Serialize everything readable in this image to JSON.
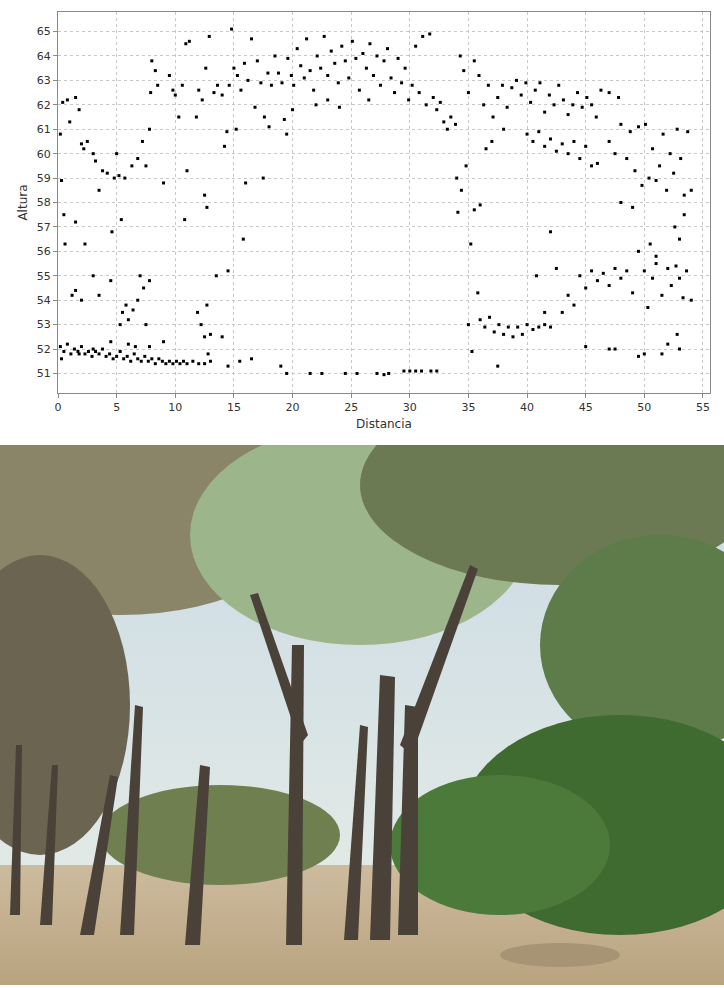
{
  "chart_data": {
    "type": "scatter",
    "x_label": "Distancia",
    "y_label": "Altura",
    "color": "#000000",
    "marker": "square",
    "grid": true,
    "xlim": [
      0,
      55.6
    ],
    "ylim": [
      50.2,
      65.8
    ],
    "xticks": [
      0,
      5,
      10,
      15,
      20,
      25,
      30,
      35,
      40,
      45,
      50,
      55
    ],
    "yticks": [
      51,
      52,
      53,
      54,
      55,
      56,
      57,
      58,
      59,
      60,
      61,
      62,
      63,
      64,
      65
    ],
    "x": [
      0.2,
      0.5,
      0.8,
      1.1,
      1.4,
      1.7,
      2.0,
      2.3,
      2.6,
      2.9,
      3.2,
      3.5,
      3.8,
      4.1,
      4.4,
      4.7,
      5.0,
      5.3,
      5.6,
      5.9,
      6.2,
      6.5,
      6.8,
      7.1,
      7.4,
      7.7,
      8.0,
      8.3,
      8.6,
      8.9,
      9.2,
      9.5,
      9.8,
      10.1,
      10.4,
      10.7,
      11.0,
      11.5,
      12.0,
      12.5,
      13.0,
      14.5,
      15.5,
      16.5,
      19.0,
      19.5,
      21.5,
      22.5,
      24.5,
      25.5,
      27.2,
      27.8,
      28.2,
      29.5,
      30.0,
      30.5,
      31.0,
      31.8,
      32.3,
      0.3,
      1.8,
      3.0,
      6.0,
      6.6,
      4.5,
      7.8,
      9.0,
      12.8,
      0.2,
      0.3,
      0.5,
      0.6,
      0.4,
      0.8,
      1.0,
      1.5,
      1.8,
      2.0,
      2.2,
      2.5,
      3.0,
      3.2,
      3.5,
      3.8,
      4.2,
      4.8,
      5.2,
      5.7,
      5.0,
      1.2,
      1.5,
      2.0,
      3.0,
      3.5,
      4.5,
      5.3,
      5.5,
      5.8,
      6.0,
      6.4,
      6.8,
      7.0,
      7.3,
      7.5,
      7.8,
      6.3,
      6.8,
      7.2,
      7.5,
      7.8,
      7.9,
      8.0,
      8.3,
      8.5,
      9.0,
      9.5,
      9.8,
      10.0,
      10.3,
      10.6,
      10.9,
      11.2,
      11.0,
      10.8,
      11.8,
      12.0,
      12.3,
      12.6,
      12.9,
      11.9,
      12.2,
      12.5,
      12.7,
      13.0,
      13.5,
      14.0,
      14.5,
      12.5,
      12.7,
      15.8,
      1.5,
      2.3,
      4.6,
      5.4,
      13.3,
      13.6,
      14.0,
      14.2,
      14.4,
      14.6,
      14.8,
      15.0,
      15.3,
      15.6,
      15.9,
      16.2,
      16.5,
      16.8,
      17.0,
      17.3,
      17.6,
      17.9,
      18.2,
      18.5,
      18.8,
      19.1,
      19.3,
      19.6,
      19.9,
      20.1,
      20.4,
      20.7,
      21.0,
      21.2,
      21.5,
      21.8,
      22.1,
      22.4,
      22.7,
      23.0,
      23.3,
      23.6,
      23.9,
      24.2,
      24.5,
      24.8,
      25.1,
      25.4,
      25.7,
      26.0,
      26.3,
      26.6,
      26.9,
      27.2,
      27.5,
      27.8,
      28.1,
      28.4,
      28.7,
      29.0,
      29.3,
      29.6,
      29.9,
      30.2,
      30.5,
      30.8,
      31.1,
      31.4,
      31.7,
      32.0,
      32.3,
      32.6,
      32.9,
      33.2,
      33.5,
      16.0,
      17.5,
      18.0,
      19.5,
      22.0,
      24.0,
      26.5,
      15.2,
      20.0,
      23.0,
      33.9,
      34.3,
      34.6,
      35.0,
      35.5,
      35.9,
      36.3,
      36.7,
      37.1,
      37.5,
      37.9,
      38.3,
      38.7,
      39.1,
      39.5,
      39.9,
      40.3,
      40.7,
      41.1,
      41.5,
      41.9,
      42.3,
      42.7,
      43.1,
      43.5,
      43.9,
      44.3,
      44.7,
      45.1,
      45.5,
      45.9,
      46.3,
      47.0,
      47.8,
      40.0,
      40.5,
      41.0,
      41.5,
      42.0,
      42.5,
      43.0,
      43.5,
      44.0,
      44.5,
      45.0,
      45.5,
      46.0,
      37.0,
      38.0,
      36.5,
      47.0,
      47.5,
      48.0,
      48.5,
      48.8,
      49.2,
      49.5,
      49.8,
      50.1,
      50.4,
      50.7,
      51.0,
      51.3,
      51.6,
      51.9,
      52.2,
      52.5,
      52.8,
      53.1,
      53.4,
      53.7,
      54.0,
      52.6,
      53.0,
      53.4,
      48.0,
      49.0,
      50.5,
      51.0,
      34.0,
      34.1,
      34.4,
      34.8,
      35.2,
      35.5,
      36.0,
      35.8,
      35.0,
      35.3,
      36.0,
      36.4,
      36.8,
      37.2,
      37.6,
      38.0,
      38.4,
      38.8,
      39.2,
      39.6,
      40.0,
      40.5,
      41.0,
      41.5,
      42.0,
      37.5,
      41.5,
      40.8,
      42.0,
      42.5,
      43.0,
      43.5,
      44.0,
      44.5,
      45.0,
      45.5,
      46.0,
      46.5,
      47.0,
      47.5,
      48.0,
      48.5,
      49.0,
      49.5,
      50.0,
      50.3,
      50.7,
      51.0,
      51.5,
      52.0,
      52.3,
      52.7,
      53.0,
      53.3,
      53.6,
      54.0,
      45.0,
      47.0,
      47.5,
      49.5,
      50.0,
      51.5,
      53.0,
      52.8,
      52.0
    ],
    "values": [
      52.1,
      51.9,
      52.2,
      51.8,
      52.0,
      51.9,
      52.1,
      51.8,
      51.9,
      51.7,
      51.9,
      51.8,
      52.0,
      51.7,
      51.8,
      51.6,
      51.7,
      51.9,
      51.6,
      51.7,
      51.5,
      51.8,
      51.6,
      51.5,
      51.7,
      51.5,
      51.6,
      51.4,
      51.6,
      51.5,
      51.4,
      51.5,
      51.4,
      51.5,
      51.4,
      51.5,
      51.4,
      51.5,
      51.4,
      51.4,
      51.5,
      51.3,
      51.5,
      51.6,
      51.3,
      51.0,
      51.0,
      51.0,
      51.0,
      51.0,
      51.0,
      50.95,
      51.0,
      51.1,
      51.1,
      51.1,
      51.1,
      51.1,
      51.1,
      51.6,
      51.8,
      52.0,
      52.2,
      52.1,
      52.3,
      52.1,
      52.3,
      51.8,
      60.8,
      58.9,
      57.5,
      56.3,
      62.1,
      62.2,
      61.3,
      62.3,
      61.8,
      60.4,
      60.2,
      60.5,
      60.0,
      59.7,
      58.5,
      59.3,
      59.2,
      59.0,
      59.1,
      59.0,
      60.0,
      54.2,
      54.4,
      54.0,
      55.0,
      54.2,
      54.8,
      53.0,
      53.5,
      53.8,
      53.2,
      53.6,
      54.0,
      55.0,
      54.5,
      53.0,
      54.8,
      59.5,
      59.8,
      60.5,
      59.5,
      61.0,
      62.5,
      63.8,
      63.4,
      62.8,
      58.8,
      63.2,
      62.6,
      62.4,
      61.5,
      62.8,
      64.5,
      64.6,
      59.3,
      57.3,
      61.5,
      62.6,
      62.2,
      63.5,
      64.8,
      53.5,
      53.0,
      52.5,
      53.8,
      52.6,
      55.0,
      52.5,
      55.2,
      58.3,
      57.8,
      56.5,
      57.2,
      56.3,
      56.8,
      57.3,
      62.5,
      62.8,
      62.4,
      60.3,
      60.9,
      62.8,
      65.1,
      63.5,
      63.2,
      62.6,
      63.7,
      63.0,
      64.7,
      61.9,
      63.8,
      62.9,
      61.5,
      63.3,
      62.8,
      64.0,
      63.3,
      62.9,
      61.4,
      63.9,
      63.2,
      62.8,
      64.3,
      63.6,
      63.1,
      64.7,
      63.4,
      62.6,
      64.0,
      63.5,
      64.8,
      63.2,
      64.2,
      63.7,
      62.9,
      64.4,
      63.8,
      63.1,
      64.6,
      63.9,
      62.6,
      64.1,
      63.5,
      64.5,
      63.2,
      64.0,
      62.8,
      63.8,
      64.3,
      63.1,
      62.5,
      63.9,
      62.9,
      63.5,
      62.2,
      62.8,
      64.4,
      62.5,
      64.8,
      62.0,
      64.9,
      62.3,
      61.8,
      62.1,
      61.3,
      61.0,
      61.5,
      58.8,
      59.0,
      61.1,
      60.8,
      62.0,
      61.9,
      62.2,
      61.0,
      61.8,
      62.2,
      61.2,
      64.0,
      63.4,
      62.5,
      63.8,
      63.2,
      62.0,
      62.8,
      61.5,
      62.3,
      62.8,
      61.9,
      62.7,
      63.0,
      62.4,
      62.9,
      62.1,
      62.6,
      62.9,
      61.7,
      62.4,
      62.0,
      62.8,
      62.2,
      61.6,
      62.0,
      62.5,
      61.9,
      62.3,
      62.0,
      61.5,
      62.6,
      62.5,
      62.3,
      60.8,
      60.5,
      60.9,
      60.3,
      60.6,
      60.1,
      60.4,
      60.0,
      60.5,
      59.8,
      60.3,
      59.5,
      59.6,
      60.5,
      61.0,
      60.2,
      60.5,
      60.0,
      61.2,
      59.8,
      60.9,
      59.3,
      61.1,
      58.7,
      61.2,
      59.0,
      60.2,
      58.9,
      59.5,
      60.8,
      58.5,
      60.0,
      59.2,
      61.0,
      59.8,
      58.3,
      60.9,
      58.5,
      57.0,
      56.5,
      57.5,
      58.0,
      57.8,
      56.3,
      55.8,
      59.0,
      57.6,
      58.5,
      59.5,
      56.3,
      57.7,
      57.9,
      54.3,
      53.0,
      51.9,
      53.2,
      52.9,
      53.3,
      52.7,
      53.0,
      52.6,
      52.9,
      52.5,
      52.9,
      52.6,
      53.0,
      52.8,
      52.9,
      53.0,
      52.9,
      51.3,
      53.5,
      55.0,
      56.8,
      55.3,
      53.5,
      54.2,
      53.8,
      55.0,
      54.5,
      55.2,
      54.8,
      55.1,
      54.6,
      55.3,
      54.9,
      55.2,
      54.3,
      56.0,
      55.2,
      53.7,
      54.9,
      55.5,
      54.2,
      55.3,
      54.6,
      55.4,
      54.9,
      54.1,
      55.2,
      54.0,
      52.1,
      52.0,
      52.0,
      51.7,
      51.8,
      51.8,
      52.0,
      52.6,
      52.2
    ]
  }
}
